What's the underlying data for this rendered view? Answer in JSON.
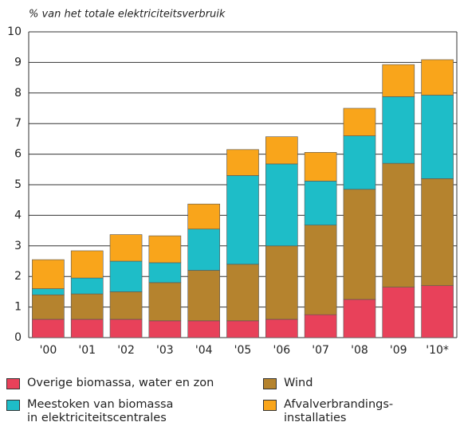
{
  "chart_data": {
    "type": "stacked_bar",
    "title": "% van het totale elektriciteitsverbruik",
    "categories": [
      "'00",
      "'01",
      "'02",
      "'03",
      "'04",
      "'05",
      "'06",
      "'07",
      "'08",
      "'09",
      "'10*"
    ],
    "series": [
      {
        "name": "Overige biomassa, water en zon",
        "color": "#e8415a",
        "values": [
          0.6,
          0.6,
          0.6,
          0.55,
          0.55,
          0.55,
          0.6,
          0.75,
          1.25,
          1.65,
          1.7
        ]
      },
      {
        "name": "Wind",
        "color": "#b5832e",
        "values": [
          0.8,
          0.83,
          0.9,
          1.25,
          1.65,
          1.85,
          2.4,
          2.93,
          3.6,
          4.05,
          3.5
        ]
      },
      {
        "name": "Meestoken van biomassa\nin elektriciteitscentrales",
        "color": "#1ebdc8",
        "values": [
          0.2,
          0.52,
          1.0,
          0.65,
          1.35,
          2.9,
          2.68,
          1.44,
          1.75,
          2.18,
          2.73
        ]
      },
      {
        "name": "Afvalverbrandings-\ninstallaties",
        "color": "#f9a51b",
        "values": [
          0.95,
          0.89,
          0.87,
          0.88,
          0.82,
          0.85,
          0.89,
          0.94,
          0.9,
          1.05,
          1.16
        ]
      }
    ],
    "ylim": [
      0,
      10
    ],
    "yticks": [
      0,
      1,
      2,
      3,
      4,
      5,
      6,
      7,
      8,
      9,
      10
    ],
    "grid": true
  }
}
